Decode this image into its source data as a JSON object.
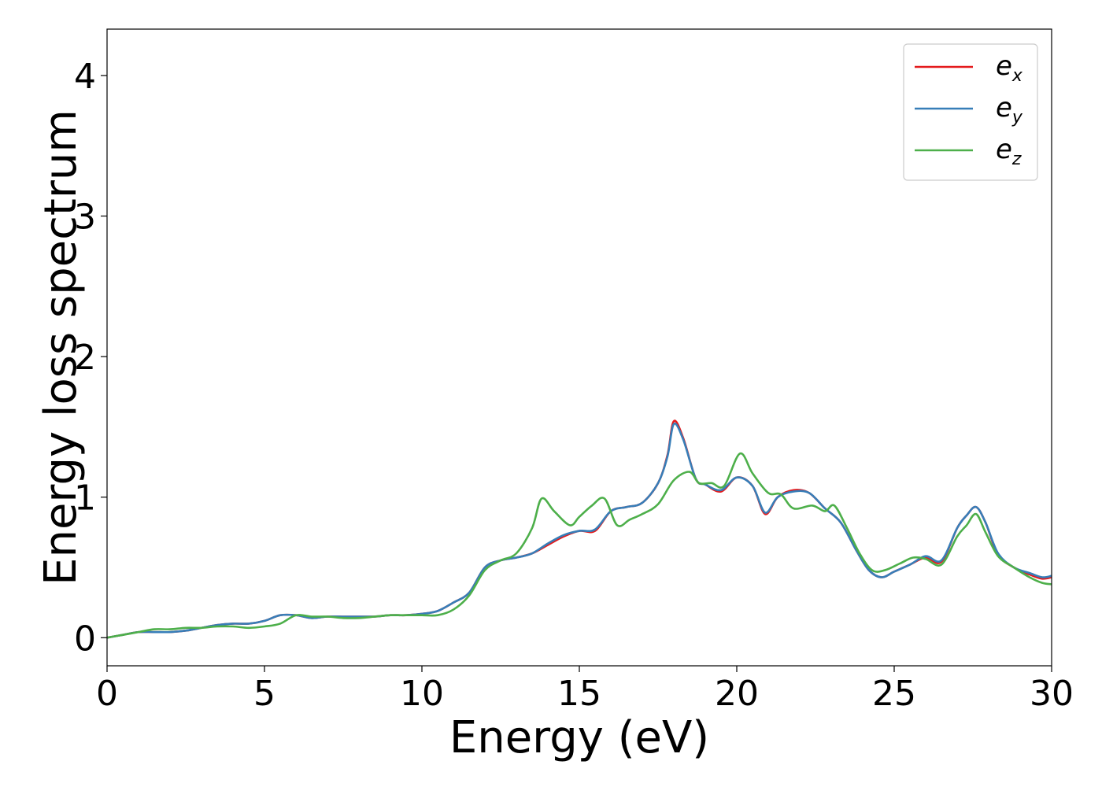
{
  "chart_data": {
    "type": "line",
    "xlabel": "Energy (eV)",
    "ylabel": "Energy loss spectrum",
    "xlim": [
      0,
      30
    ],
    "ylim": [
      -0.2,
      4.33
    ],
    "xticks": [
      0,
      5,
      10,
      15,
      20,
      25,
      30
    ],
    "yticks": [
      0,
      1,
      2,
      3,
      4
    ],
    "xtick_labels": [
      "0",
      "5",
      "10",
      "15",
      "20",
      "25",
      "30"
    ],
    "ytick_labels": [
      "0",
      "1",
      "2",
      "3",
      "4"
    ],
    "grid": false,
    "legend_position": "top-right",
    "series": [
      {
        "name": "e_x",
        "legend_base": "e",
        "legend_sub": "x",
        "color": "#e41a1c",
        "x": [
          0,
          0.5,
          1,
          1.5,
          2,
          2.5,
          3,
          3.5,
          4,
          4.5,
          5,
          5.5,
          6,
          6.5,
          7,
          7.5,
          8,
          8.5,
          9,
          9.5,
          10,
          10.5,
          11,
          11.5,
          12,
          12.5,
          13,
          13.5,
          14,
          14.5,
          15,
          15.5,
          16,
          16.5,
          17,
          17.5,
          17.8,
          18,
          18.3,
          18.7,
          19,
          19.5,
          20,
          20.5,
          20.9,
          21.3,
          21.8,
          22.3,
          22.8,
          23.3,
          23.8,
          24.2,
          24.6,
          25,
          25.5,
          26,
          26.5,
          27,
          27.3,
          27.6,
          27.9,
          28.3,
          28.8,
          29.3,
          29.7,
          30
        ],
        "y": [
          0,
          0.02,
          0.04,
          0.04,
          0.04,
          0.05,
          0.07,
          0.09,
          0.1,
          0.1,
          0.12,
          0.16,
          0.16,
          0.14,
          0.15,
          0.15,
          0.15,
          0.15,
          0.16,
          0.16,
          0.17,
          0.19,
          0.25,
          0.32,
          0.5,
          0.55,
          0.57,
          0.6,
          0.66,
          0.72,
          0.76,
          0.76,
          0.9,
          0.93,
          0.96,
          1.1,
          1.3,
          1.54,
          1.42,
          1.13,
          1.09,
          1.04,
          1.14,
          1.08,
          0.88,
          1.0,
          1.05,
          1.03,
          0.92,
          0.82,
          0.62,
          0.48,
          0.43,
          0.47,
          0.52,
          0.57,
          0.54,
          0.78,
          0.87,
          0.93,
          0.82,
          0.59,
          0.5,
          0.45,
          0.42,
          0.43
        ]
      },
      {
        "name": "e_y",
        "legend_base": "e",
        "legend_sub": "y",
        "color": "#377eb8",
        "x": [
          0,
          0.5,
          1,
          1.5,
          2,
          2.5,
          3,
          3.5,
          4,
          4.5,
          5,
          5.5,
          6,
          6.5,
          7,
          7.5,
          8,
          8.5,
          9,
          9.5,
          10,
          10.5,
          11,
          11.5,
          12,
          12.5,
          13,
          13.5,
          14,
          14.5,
          15,
          15.5,
          16,
          16.5,
          17,
          17.5,
          17.8,
          18,
          18.3,
          18.7,
          19,
          19.5,
          20,
          20.5,
          20.9,
          21.3,
          21.8,
          22.3,
          22.8,
          23.3,
          23.8,
          24.2,
          24.6,
          25,
          25.5,
          26,
          26.5,
          27,
          27.3,
          27.6,
          27.9,
          28.3,
          28.8,
          29.3,
          29.7,
          30
        ],
        "y": [
          0,
          0.02,
          0.04,
          0.04,
          0.04,
          0.05,
          0.07,
          0.09,
          0.1,
          0.1,
          0.12,
          0.16,
          0.16,
          0.14,
          0.15,
          0.15,
          0.15,
          0.15,
          0.16,
          0.16,
          0.17,
          0.19,
          0.25,
          0.32,
          0.5,
          0.55,
          0.57,
          0.6,
          0.67,
          0.73,
          0.76,
          0.77,
          0.9,
          0.93,
          0.96,
          1.1,
          1.29,
          1.52,
          1.41,
          1.13,
          1.09,
          1.05,
          1.14,
          1.08,
          0.89,
          1.0,
          1.04,
          1.03,
          0.92,
          0.82,
          0.62,
          0.48,
          0.43,
          0.47,
          0.52,
          0.58,
          0.55,
          0.78,
          0.87,
          0.93,
          0.82,
          0.6,
          0.5,
          0.46,
          0.43,
          0.44
        ]
      },
      {
        "name": "e_z",
        "legend_base": "e",
        "legend_sub": "z",
        "color": "#4daf4a",
        "x": [
          0,
          0.5,
          1,
          1.5,
          2,
          2.5,
          3,
          3.5,
          4,
          4.5,
          5,
          5.5,
          6,
          6.5,
          7,
          7.5,
          8,
          8.5,
          9,
          9.5,
          10,
          10.5,
          11,
          11.5,
          12,
          12.5,
          13,
          13.5,
          13.8,
          14.2,
          14.7,
          15,
          15.4,
          15.8,
          16.2,
          16.6,
          17,
          17.5,
          18,
          18.5,
          18.8,
          19.2,
          19.6,
          20.1,
          20.5,
          21,
          21.4,
          21.8,
          22.4,
          22.8,
          23.1,
          23.5,
          23.9,
          24.3,
          24.7,
          25.2,
          25.6,
          26,
          26.5,
          27,
          27.3,
          27.6,
          27.9,
          28.3,
          28.8,
          29.3,
          29.7,
          30
        ],
        "y": [
          0,
          0.02,
          0.04,
          0.06,
          0.06,
          0.07,
          0.07,
          0.08,
          0.08,
          0.07,
          0.08,
          0.1,
          0.16,
          0.15,
          0.15,
          0.14,
          0.14,
          0.15,
          0.16,
          0.16,
          0.16,
          0.16,
          0.2,
          0.3,
          0.48,
          0.55,
          0.6,
          0.78,
          0.99,
          0.9,
          0.8,
          0.86,
          0.94,
          0.99,
          0.8,
          0.84,
          0.88,
          0.95,
          1.12,
          1.18,
          1.1,
          1.1,
          1.08,
          1.31,
          1.17,
          1.03,
          1.02,
          0.92,
          0.94,
          0.9,
          0.94,
          0.78,
          0.6,
          0.48,
          0.48,
          0.53,
          0.57,
          0.56,
          0.52,
          0.72,
          0.8,
          0.88,
          0.75,
          0.58,
          0.5,
          0.43,
          0.39,
          0.38
        ]
      }
    ]
  }
}
